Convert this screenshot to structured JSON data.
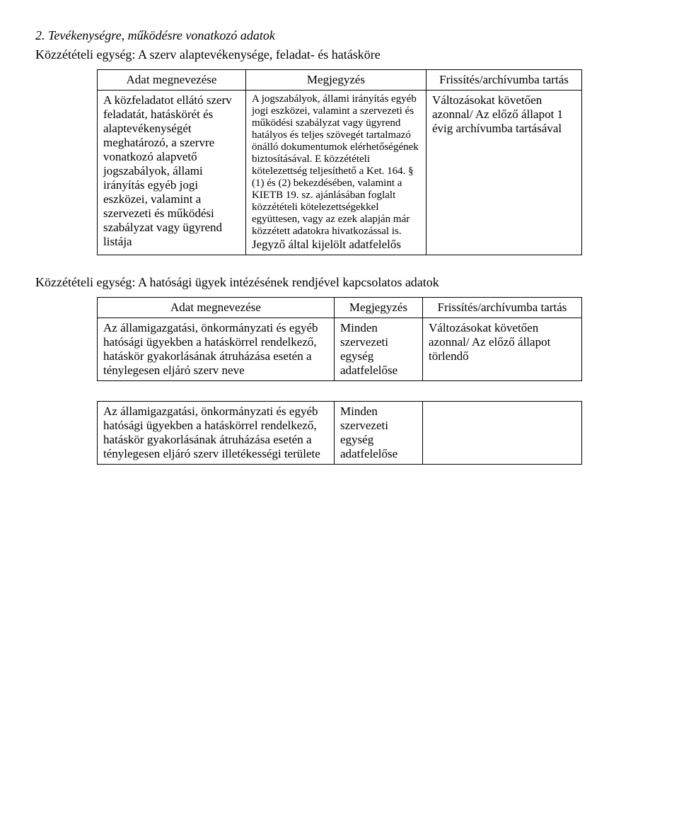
{
  "section_title": "2. Tevékenységre, működésre vonatkozó adatok",
  "unit1": {
    "subtitle": "Közzétételi egység: A szerv alaptevékenysége, feladat- és hatásköre",
    "header": {
      "col1": "Adat megnevezése",
      "col2": "Megjegyzés",
      "col3": "Frissítés/archívumba tartás"
    },
    "row": {
      "col1": "A közfeladatot ellátó szerv feladatát, hatáskörét és alaptevékenységét meghatározó, a szervre vonatkozó alapvető jogszabályok, állami irányítás egyéb jogi eszközei, valamint a szervezeti és működési szabályzat vagy ügyrend listája",
      "col2_small": "A jogszabályok, állami irányítás egyéb jogi eszközei, valamint a szervezeti és működési szabályzat vagy ügyrend hatályos és teljes szövegét tartalmazó önálló dokumentumok elérhetőségének biztosításával. E közzétételi kötelezettség teljesíthető a Ket. 164. § (1) és (2) bekezdésében, valamint a KIETB 19. sz. ajánlásában foglalt közzétételi kötelezettségekkel együttesen, vagy az ezek alapján már közzétett adatokra hivatkozással is.",
      "col2_note": "Jegyző által kijelölt adatfelelős",
      "col3": "Változásokat követően azonnal/ Az előző állapot 1 évig archívumba tartásával"
    }
  },
  "unit2": {
    "subtitle": "Közzétételi egység: A hatósági ügyek intézésének rendjével kapcsolatos adatok",
    "header": {
      "col1": "Adat megnevezése",
      "col2": "Megjegyzés",
      "col3": "Frissítés/archívumba tartás"
    },
    "row1": {
      "col1": "Az államigazgatási, önkormányzati és egyéb hatósági ügyekben a hatáskörrel rendelkező, hatáskör gyakorlásának átruházása esetén a ténylegesen eljáró szerv neve",
      "col2": "Minden szervezeti egység adatfelelőse",
      "col3": "Változásokat követően azonnal/ Az előző állapot törlendő"
    },
    "row2": {
      "col1": "Az államigazgatási, önkormányzati és egyéb hatósági ügyekben a hatáskörrel rendelkező, hatáskör gyakorlásának átruházása esetén a ténylegesen eljáró szerv illetékességi területe",
      "col2": "Minden szervezeti egység adatfelelőse",
      "col3": ""
    }
  }
}
